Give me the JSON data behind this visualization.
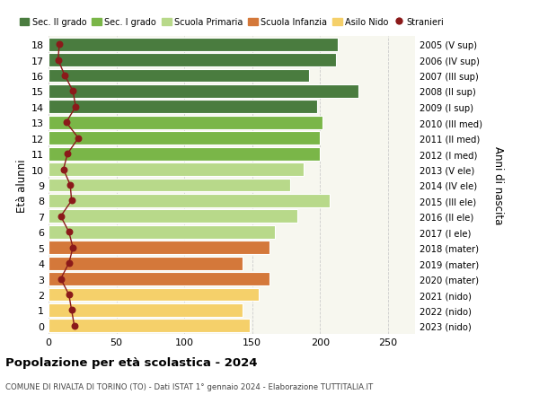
{
  "ages": [
    18,
    17,
    16,
    15,
    14,
    13,
    12,
    11,
    10,
    9,
    8,
    7,
    6,
    5,
    4,
    3,
    2,
    1,
    0
  ],
  "bar_values": [
    213,
    212,
    192,
    228,
    198,
    202,
    200,
    200,
    188,
    178,
    207,
    183,
    167,
    163,
    143,
    163,
    155,
    143,
    148
  ],
  "stranieri_values": [
    8,
    7,
    12,
    18,
    20,
    13,
    22,
    14,
    11,
    16,
    17,
    9,
    15,
    18,
    15,
    9,
    15,
    17,
    19
  ],
  "right_labels": [
    "2005 (V sup)",
    "2006 (IV sup)",
    "2007 (III sup)",
    "2008 (II sup)",
    "2009 (I sup)",
    "2010 (III med)",
    "2011 (II med)",
    "2012 (I med)",
    "2013 (V ele)",
    "2014 (IV ele)",
    "2015 (III ele)",
    "2016 (II ele)",
    "2017 (I ele)",
    "2018 (mater)",
    "2019 (mater)",
    "2020 (mater)",
    "2021 (nido)",
    "2022 (nido)",
    "2023 (nido)"
  ],
  "bar_colors": [
    "#4a7c3f",
    "#4a7c3f",
    "#4a7c3f",
    "#4a7c3f",
    "#4a7c3f",
    "#7ab648",
    "#7ab648",
    "#7ab648",
    "#b8d98a",
    "#b8d98a",
    "#b8d98a",
    "#b8d98a",
    "#b8d98a",
    "#d4783a",
    "#d4783a",
    "#d4783a",
    "#f5d06a",
    "#f5d06a",
    "#f5d06a"
  ],
  "stranieri_color": "#8b1a1a",
  "legend_labels": [
    "Sec. II grado",
    "Sec. I grado",
    "Scuola Primaria",
    "Scuola Infanzia",
    "Asilo Nido",
    "Stranieri"
  ],
  "legend_colors": [
    "#4a7c3f",
    "#7ab648",
    "#b8d98a",
    "#d4783a",
    "#f5d06a",
    "#8b1a1a"
  ],
  "ylabel": "Età alunni",
  "ylabel_right": "Anni di nascita",
  "title": "Popolazione per età scolastica - 2024",
  "subtitle": "COMUNE DI RIVALTA DI TORINO (TO) - Dati ISTAT 1° gennaio 2024 - Elaborazione TUTTITALIA.IT",
  "xlim": [
    0,
    270
  ],
  "xticks": [
    0,
    50,
    100,
    150,
    200,
    250
  ],
  "ax_facecolor": "#f7f7ef",
  "fig_facecolor": "#ffffff",
  "grid_color": "#cccccc"
}
